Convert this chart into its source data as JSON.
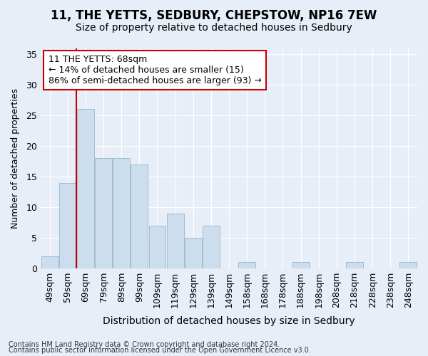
{
  "title1": "11, THE YETTS, SEDBURY, CHEPSTOW, NP16 7EW",
  "title2": "Size of property relative to detached houses in Sedbury",
  "xlabel": "Distribution of detached houses by size in Sedbury",
  "ylabel": "Number of detached properties",
  "categories": [
    "49sqm",
    "59sqm",
    "69sqm",
    "79sqm",
    "89sqm",
    "99sqm",
    "109sqm",
    "119sqm",
    "129sqm",
    "139sqm",
    "149sqm",
    "158sqm",
    "168sqm",
    "178sqm",
    "188sqm",
    "198sqm",
    "208sqm",
    "218sqm",
    "228sqm",
    "238sqm",
    "248sqm"
  ],
  "values": [
    2,
    14,
    26,
    18,
    18,
    17,
    7,
    9,
    5,
    7,
    0,
    1,
    0,
    0,
    1,
    0,
    0,
    1,
    0,
    0,
    1
  ],
  "bar_color": "#ccdded",
  "bar_edge_color": "#9fbdd4",
  "annotation_text": "11 THE YETTS: 68sqm\n← 14% of detached houses are smaller (15)\n86% of semi-detached houses are larger (93) →",
  "annotation_box_color": "#ffffff",
  "annotation_box_edge": "#cc0000",
  "vline_color": "#cc0000",
  "ylim": [
    0,
    36
  ],
  "yticks": [
    0,
    5,
    10,
    15,
    20,
    25,
    30,
    35
  ],
  "bg_color": "#e8eef8",
  "plot_bg_color": "#e8eef8",
  "footer1": "Contains HM Land Registry data © Crown copyright and database right 2024.",
  "footer2": "Contains public sector information licensed under the Open Government Licence v3.0.",
  "title1_fontsize": 12,
  "title2_fontsize": 10,
  "xlabel_fontsize": 10,
  "ylabel_fontsize": 9,
  "tick_fontsize": 9,
  "annotation_fontsize": 9,
  "footer_fontsize": 7
}
